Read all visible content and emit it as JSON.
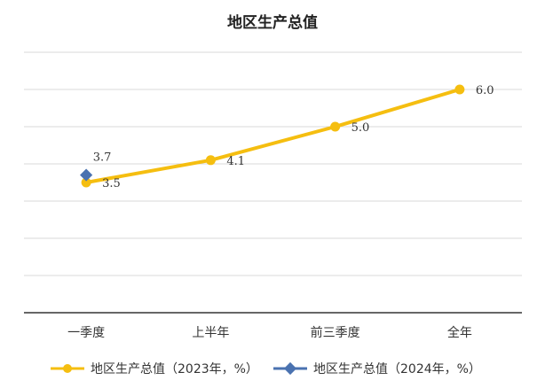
{
  "chart_data": {
    "type": "line",
    "title": "地区生产总值",
    "categories": [
      "一季度",
      "上半年",
      "前三季度",
      "全年"
    ],
    "ylim": [
      0,
      7
    ],
    "grid": true,
    "legend_position": "bottom",
    "series": [
      {
        "name": "地区生产总值（2023年，%）",
        "values": [
          3.5,
          4.1,
          5.0,
          6.0
        ],
        "labels": [
          "3.5",
          "4.1",
          "5.0",
          "6.0"
        ],
        "color": "#F5BE10",
        "marker": "circle"
      },
      {
        "name": "地区生产总值（2024年，%）",
        "values": [
          3.7,
          null,
          null,
          null
        ],
        "labels": [
          "3.7",
          "",
          "",
          ""
        ],
        "color": "#4A72B0",
        "marker": "diamond"
      }
    ]
  }
}
